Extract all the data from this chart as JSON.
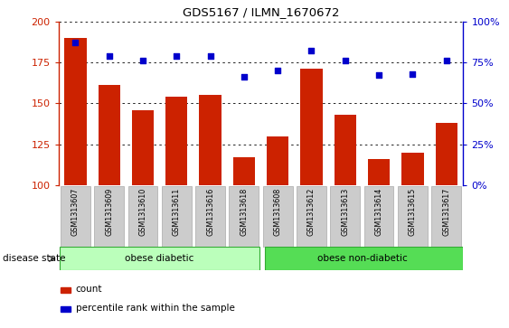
{
  "title": "GDS5167 / ILMN_1670672",
  "samples": [
    "GSM1313607",
    "GSM1313609",
    "GSM1313610",
    "GSM1313611",
    "GSM1313616",
    "GSM1313618",
    "GSM1313608",
    "GSM1313612",
    "GSM1313613",
    "GSM1313614",
    "GSM1313615",
    "GSM1313617"
  ],
  "counts": [
    190,
    161,
    146,
    154,
    155,
    117,
    130,
    171,
    143,
    116,
    120,
    138
  ],
  "percentiles": [
    87,
    79,
    76,
    79,
    79,
    66,
    70,
    82,
    76,
    67,
    68,
    76
  ],
  "bar_color": "#cc2200",
  "dot_color": "#0000cc",
  "ylim_left": [
    100,
    200
  ],
  "ylim_right": [
    0,
    100
  ],
  "yticks_left": [
    100,
    125,
    150,
    175,
    200
  ],
  "yticks_right": [
    0,
    25,
    50,
    75,
    100
  ],
  "group1_label": "obese diabetic",
  "group2_label": "obese non-diabetic",
  "group1_count": 6,
  "group2_count": 6,
  "disease_state_label": "disease state",
  "legend_count_label": "count",
  "legend_pct_label": "percentile rank within the sample",
  "group1_color": "#bbffbb",
  "group2_color": "#55dd55",
  "tick_area_color": "#cccccc",
  "group_border_color": "#33aa33"
}
